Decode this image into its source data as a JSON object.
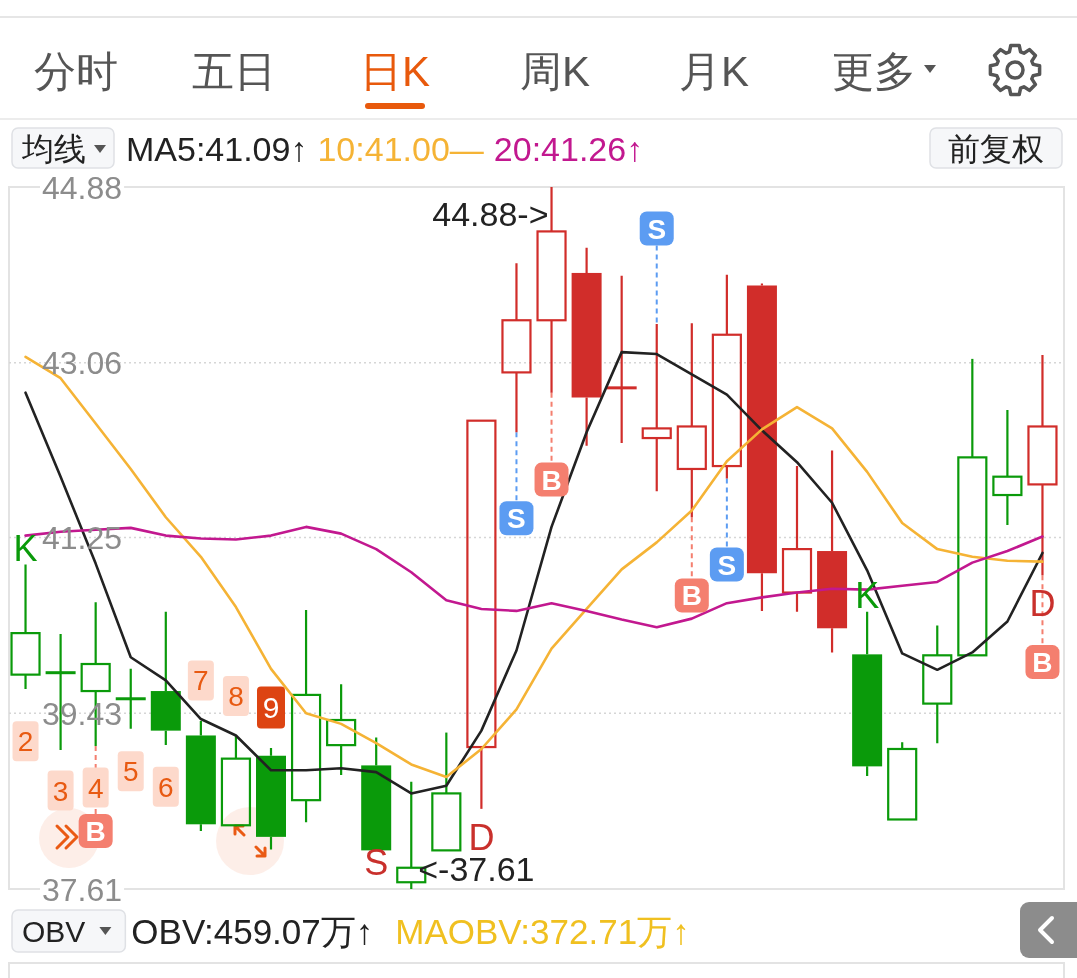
{
  "chart_data": [
    {
      "type": "other",
      "annotations": [
        "分时",
        "五日",
        "日K",
        "周K",
        "月K",
        "更多"
      ],
      "colors": [
        "#555555",
        "#555555",
        "#e8590c",
        "#555555",
        "#555555",
        "#555555"
      ]
    },
    {
      "type": "candlestick",
      "legend_title": "均线",
      "legend": "top",
      "categories": [
        null,
        null,
        null,
        null,
        null,
        null,
        null,
        null,
        null,
        null,
        null,
        null,
        null,
        null,
        null,
        null,
        null,
        null,
        null,
        null,
        null,
        null,
        null,
        null,
        null,
        null,
        null,
        null,
        null,
        null
      ],
      "ohlc": [
        [
          39.83,
          40.97,
          39.68,
          40.26
        ],
        [
          39.85,
          40.25,
          39.05,
          39.85
        ],
        [
          39.66,
          40.58,
          39.09,
          39.94
        ],
        [
          39.58,
          39.89,
          39.27,
          39.58
        ],
        [
          39.66,
          40.48,
          39.1,
          39.25
        ],
        [
          39.2,
          39.35,
          38.21,
          38.28
        ],
        [
          38.27,
          39.2,
          38.26,
          38.96
        ],
        [
          38.99,
          39.07,
          38.02,
          38.15
        ],
        [
          38.53,
          40.5,
          38.3,
          39.62
        ],
        [
          39.1,
          39.73,
          38.79,
          39.36
        ],
        [
          38.89,
          39.18,
          38.0,
          38.01
        ],
        [
          37.68,
          38.72,
          37.61,
          37.83
        ],
        [
          38.01,
          39.23,
          38.01,
          38.6
        ],
        [
          39.08,
          42.46,
          38.44,
          42.46
        ],
        [
          42.96,
          44.09,
          42.34,
          43.5
        ],
        [
          43.5,
          44.88,
          42.75,
          44.42
        ],
        [
          43.99,
          44.25,
          42.2,
          42.7
        ],
        [
          42.8,
          43.96,
          42.23,
          42.8
        ],
        [
          42.28,
          43.46,
          41.73,
          42.38
        ],
        [
          41.96,
          43.47,
          41.46,
          42.4
        ],
        [
          41.99,
          43.97,
          41.86,
          43.35
        ],
        [
          43.86,
          43.88,
          40.49,
          40.88
        ],
        [
          40.68,
          41.99,
          40.48,
          41.13
        ],
        [
          41.11,
          42.15,
          40.06,
          40.31
        ],
        [
          40.04,
          40.48,
          38.78,
          38.88
        ],
        [
          38.33,
          39.13,
          38.33,
          39.06
        ],
        [
          39.53,
          40.34,
          39.12,
          40.03
        ],
        [
          40.03,
          43.1,
          40.03,
          42.08
        ],
        [
          41.69,
          42.57,
          41.38,
          41.88
        ],
        [
          41.8,
          43.14,
          40.86,
          42.4
        ]
      ],
      "colors": [
        "#0a9a0a",
        "#0a9a0a",
        "#0a9a0a",
        "#0a9a0a",
        "#0a9a0a",
        "#0a9a0a",
        "#0a9a0a",
        "#0a9a0a",
        "#0a9a0a",
        "#0a9a0a",
        "#0a9a0a",
        "#0a9a0a",
        "#0a9a0a",
        "#d12d2a",
        "#d12d2a",
        "#d12d2a",
        "#d12d2a",
        "#d12d2a",
        "#d12d2a",
        "#d12d2a",
        "#d12d2a",
        "#d12d2a",
        "#d12d2a",
        "#d12d2a",
        "#0a9a0a",
        "#0a9a0a",
        "#0a9a0a",
        "#0a9a0a",
        "#0a9a0a",
        "#d12d2a"
      ],
      "series": [
        {
          "type": "line",
          "name": "MA5:41.09↑",
          "color": "#222222",
          "values": [
            42.75,
            41.88,
            40.98,
            40.01,
            39.77,
            39.37,
            39.2,
            38.84,
            38.84,
            38.86,
            38.82,
            38.6,
            38.68,
            39.25,
            40.08,
            41.36,
            42.34,
            43.17,
            43.15,
            42.94,
            42.73,
            42.36,
            42.03,
            41.61,
            40.91,
            40.05,
            39.88,
            40.06,
            40.38,
            41.09
          ]
        },
        {
          "type": "line",
          "name": "10:41.00—",
          "color": "#f5b335",
          "values": [
            43.12,
            42.9,
            42.43,
            41.96,
            41.46,
            41.05,
            40.53,
            39.89,
            39.43,
            39.32,
            39.12,
            38.9,
            38.77,
            39.06,
            39.47,
            40.1,
            40.51,
            40.92,
            41.2,
            41.53,
            42.04,
            42.37,
            42.6,
            42.38,
            41.93,
            41.4,
            41.13,
            41.05,
            41.01,
            41.0
          ]
        },
        {
          "type": "line",
          "name": "20:41.26↑",
          "color": "#c2188f",
          "values": [
            41.27,
            41.31,
            41.33,
            41.35,
            41.27,
            41.24,
            41.23,
            41.27,
            41.36,
            41.29,
            41.13,
            40.89,
            40.6,
            40.51,
            40.49,
            40.57,
            40.49,
            40.4,
            40.32,
            40.41,
            40.57,
            40.63,
            40.68,
            40.72,
            40.71,
            40.75,
            40.79,
            40.99,
            41.11,
            41.26
          ]
        }
      ],
      "ylim": [
        37.61,
        44.88
      ],
      "yticks": [
        44.88,
        43.06,
        41.25,
        39.43,
        37.61
      ],
      "grid": "y",
      "annotations": [
        "前复权",
        "K",
        {
          "text": "2",
          "y": 39.14
        },
        {
          "text": "3",
          "y": 38.63
        },
        {
          "text": "4",
          "y": 38.66
        },
        {
          "text": "B",
          "y": 38.21
        },
        {
          "text": "5",
          "y": 38.83
        },
        {
          "text": "6",
          "y": 38.67
        },
        {
          "text": "7",
          "y": 39.77
        },
        {
          "text": "8",
          "y": 39.61
        },
        {
          "text": "9",
          "y": 39.49
        },
        "S",
        "<-37.61",
        "D",
        {
          "text": "S",
          "y": 41.45
        },
        "44.88->",
        {
          "text": "B",
          "y": 41.85
        },
        {
          "text": "S",
          "y": 44.45
        },
        {
          "text": "B",
          "y": 40.65
        },
        {
          "text": "S",
          "y": 40.97
        },
        "K",
        "D",
        {
          "text": "B",
          "y": 39.96
        }
      ]
    },
    {
      "type": "other",
      "annotations": [
        "OBV",
        "OBV:459.07万↑",
        "MAOBV:372.71万↑"
      ],
      "colors": [
        "#222222",
        "#222222",
        "#f0c020"
      ]
    }
  ]
}
